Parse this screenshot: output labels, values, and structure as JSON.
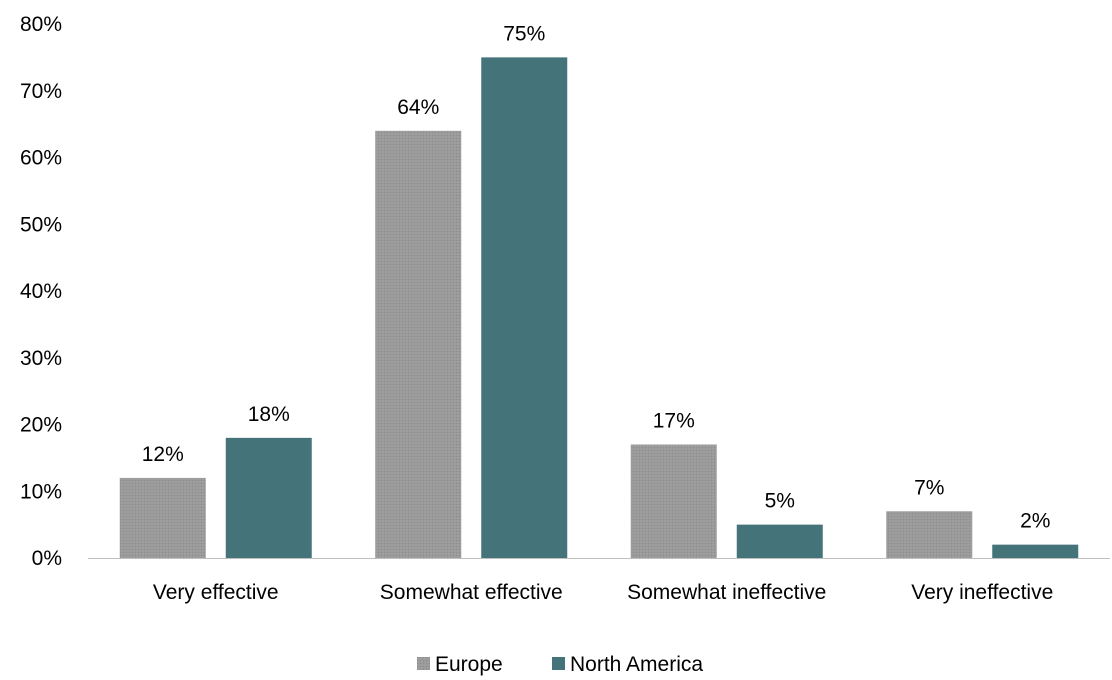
{
  "chart_data": {
    "type": "bar",
    "title": "",
    "xlabel": "",
    "ylabel": "",
    "categories": [
      "Very effective",
      "Somewhat effective",
      "Somewhat ineffective",
      "Very ineffective"
    ],
    "series": [
      {
        "name": "Europe",
        "values": [
          12,
          64,
          17,
          7
        ],
        "labels": [
          "12%",
          "64%",
          "17%",
          "7%"
        ],
        "color": "#999999"
      },
      {
        "name": "North America",
        "values": [
          18,
          75,
          5,
          2
        ],
        "labels": [
          "18%",
          "75%",
          "5%",
          "2%"
        ],
        "color": "#45737a"
      }
    ],
    "ylim": [
      0,
      80
    ],
    "yticks": [
      0,
      10,
      20,
      30,
      40,
      50,
      60,
      70,
      80
    ],
    "ytick_labels": [
      "0%",
      "10%",
      "20%",
      "30%",
      "40%",
      "50%",
      "60%",
      "70%",
      "80%"
    ],
    "grid": false,
    "legend_position": "bottom-center"
  }
}
